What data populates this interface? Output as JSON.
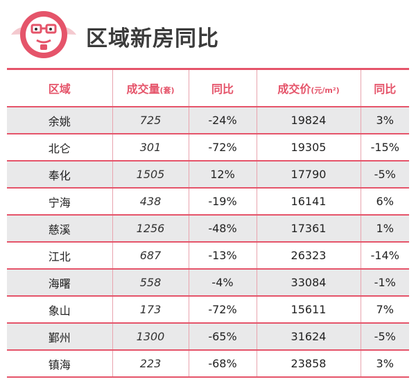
{
  "title": "区域新房同比",
  "table": {
    "headers": [
      "区域",
      "成交量",
      "同比",
      "成交价",
      "同比"
    ],
    "header_units": [
      "",
      "(套)",
      "",
      "(元/m²)",
      ""
    ],
    "rows": [
      [
        "余姚",
        "725",
        "-24%",
        "19824",
        "3%"
      ],
      [
        "北仑",
        "301",
        "-72%",
        "19305",
        "-15%"
      ],
      [
        "奉化",
        "1505",
        "12%",
        "17790",
        "-5%"
      ],
      [
        "宁海",
        "438",
        "-19%",
        "16141",
        "6%"
      ],
      [
        "慈溪",
        "1256",
        "-48%",
        "17361",
        "1%"
      ],
      [
        "江北",
        "687",
        "-13%",
        "26323",
        "-14%"
      ],
      [
        "海曙",
        "558",
        "-4%",
        "33084",
        "-1%"
      ],
      [
        "象山",
        "173",
        "-72%",
        "15611",
        "7%"
      ],
      [
        "鄞州",
        "1300",
        "-65%",
        "31624",
        "-5%"
      ],
      [
        "镇海",
        "223",
        "-68%",
        "23858",
        "3%"
      ]
    ]
  },
  "colors": {
    "accent": "#e5546a",
    "stripe": "#e9e9ea",
    "title": "#3b3b3b"
  },
  "icons": {
    "logo": "mascot-logo-icon"
  }
}
